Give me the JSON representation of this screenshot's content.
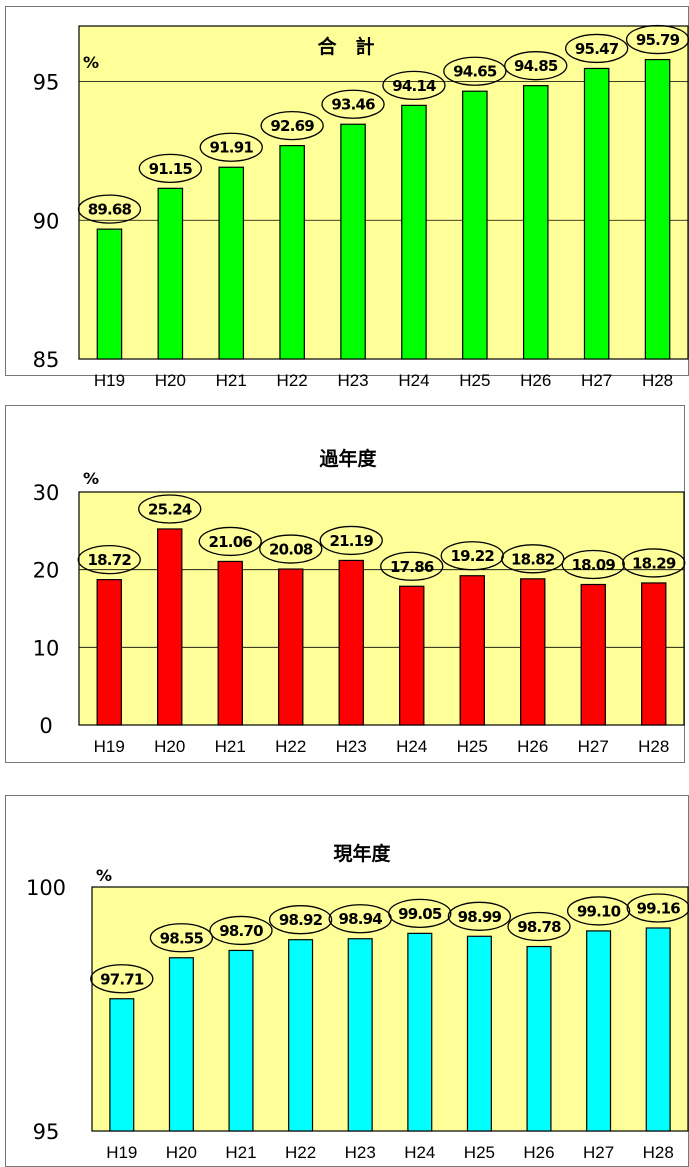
{
  "chart_data": [
    {
      "type": "bar",
      "title": "合　計",
      "unit_label": "%",
      "categories": [
        "H19",
        "H20",
        "H21",
        "H22",
        "H23",
        "H24",
        "H25",
        "H26",
        "H27",
        "H28"
      ],
      "values": [
        89.68,
        91.15,
        91.91,
        92.69,
        93.46,
        94.14,
        94.65,
        94.85,
        95.47,
        95.79
      ],
      "data_labels": [
        "89.68",
        "91.15",
        "91.91",
        "92.69",
        "93.46",
        "94.14",
        "94.65",
        "94.85",
        "95.47",
        "95.79"
      ],
      "ylim": [
        85,
        97
      ],
      "yticks": [
        85,
        90,
        95
      ],
      "gridlines": [
        90,
        95
      ],
      "bar_color": "#00ff00",
      "plot_bg": "#ffff99"
    },
    {
      "type": "bar",
      "title": "過年度",
      "unit_label": "%",
      "categories": [
        "H19",
        "H20",
        "H21",
        "H22",
        "H23",
        "H24",
        "H25",
        "H26",
        "H27",
        "H28"
      ],
      "values": [
        18.72,
        25.24,
        21.06,
        20.08,
        21.19,
        17.86,
        19.22,
        18.82,
        18.09,
        18.29
      ],
      "data_labels": [
        "18.72",
        "25.24",
        "21.06",
        "20.08",
        "21.19",
        "17.86",
        "19.22",
        "18.82",
        "18.09",
        "18.29"
      ],
      "ylim": [
        0,
        30
      ],
      "yticks": [
        0,
        10,
        20,
        30
      ],
      "gridlines": [
        10,
        20
      ],
      "bar_color": "#ff0000",
      "plot_bg": "#ffff99"
    },
    {
      "type": "bar",
      "title": "現年度",
      "unit_label": "%",
      "categories": [
        "H19",
        "H20",
        "H21",
        "H22",
        "H23",
        "H24",
        "H25",
        "H26",
        "H27",
        "H28"
      ],
      "values": [
        97.71,
        98.55,
        98.7,
        98.92,
        98.94,
        99.05,
        98.99,
        98.78,
        99.1,
        99.16
      ],
      "data_labels": [
        "97.71",
        "98.55",
        "98.70",
        "98.92",
        "98.94",
        "99.05",
        "98.99",
        "98.78",
        "99.10",
        "99.16"
      ],
      "ylim": [
        95,
        100
      ],
      "yticks": [
        95,
        100
      ],
      "gridlines": [],
      "bar_color": "#00ffff",
      "plot_bg": "#ffff99"
    }
  ]
}
